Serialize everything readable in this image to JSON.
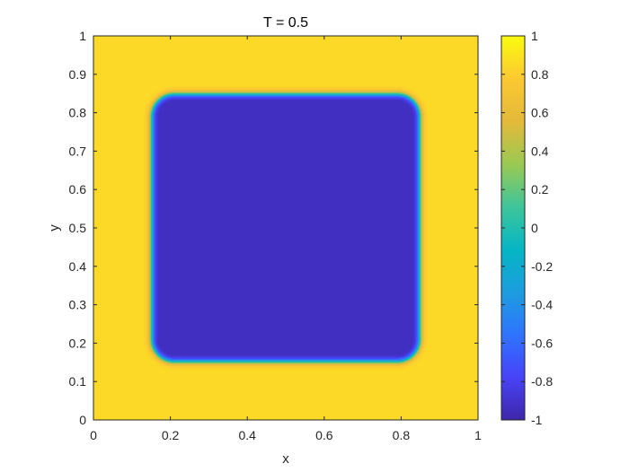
{
  "chart_data": {
    "type": "heatmap",
    "title": "T = 0.5",
    "xlabel": "x",
    "ylabel": "y",
    "xlim": [
      0,
      1
    ],
    "ylim": [
      0,
      1
    ],
    "x_ticks": [
      "0",
      "0.2",
      "0.4",
      "0.6",
      "0.8",
      "1"
    ],
    "y_ticks": [
      "0",
      "0.1",
      "0.2",
      "0.3",
      "0.4",
      "0.5",
      "0.6",
      "0.7",
      "0.8",
      "0.9",
      "1"
    ],
    "colorbar": {
      "clim": [
        -1,
        1
      ],
      "ticks": [
        "-1",
        "-0.8",
        "-0.6",
        "-0.4",
        "-0.2",
        "0",
        "0.2",
        "0.4",
        "0.6",
        "0.8",
        "1"
      ],
      "colormap": "parula"
    },
    "field": {
      "background_value": 0.85,
      "inner_value": -0.95,
      "inner_region": {
        "x": [
          0.15,
          0.85
        ],
        "y": [
          0.15,
          0.85
        ],
        "corner_radius": 0.06
      },
      "interface_width": 0.012
    },
    "grid": false,
    "legend": "colorbar-right"
  },
  "colors": {
    "parula_stops": [
      "#3e26a8",
      "#4743f8",
      "#2f74ff",
      "#1c9dde",
      "#05b6c4",
      "#3fc59a",
      "#9bc952",
      "#e4b93a",
      "#fcc932",
      "#f9fb0e"
    ],
    "axis_color": "#262626"
  }
}
